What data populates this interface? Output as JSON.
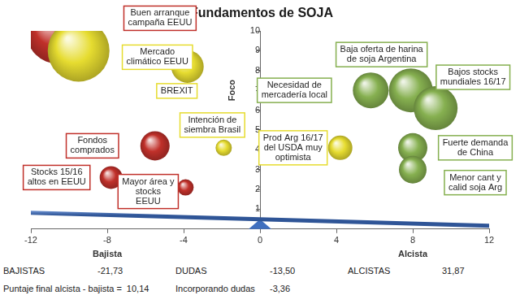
{
  "chart_data": {
    "type": "bubble",
    "title": "Fundamentos de SOJA",
    "xlabel": [
      "Bajista",
      "Alcista"
    ],
    "ylabel": "Foco",
    "xlim": [
      -12,
      12
    ],
    "xticks": [
      -12,
      -8,
      -4,
      0,
      4,
      8,
      12
    ],
    "ylim": [
      0,
      10
    ],
    "yticks": [
      1,
      2,
      3,
      4,
      5,
      6,
      7,
      8,
      9,
      10
    ],
    "grid": false,
    "series": [
      {
        "name": "BAJISTAS",
        "color": "#c0302a",
        "total": -21.73,
        "total_label": "-21,73",
        "values": [
          {
            "x": -10.6,
            "y": 9.9,
            "size": 38,
            "label": "Buen arranque\ncampaña EEUU"
          },
          {
            "x": -5.5,
            "y": 4.2,
            "size": 18,
            "label": "Fondos\ncomprados"
          },
          {
            "x": -7.8,
            "y": 2.6,
            "size": 14,
            "label": "Stocks 15/16\naltos en EEUU"
          },
          {
            "x": -3.9,
            "y": 2.1,
            "size": 10,
            "label": "Mayor área y\nstocks\nEEUU"
          }
        ]
      },
      {
        "name": "DUDAS",
        "color": "#e6dc30",
        "total": -13.5,
        "total_label": "-13,50",
        "values": [
          {
            "x": -9.5,
            "y": 9.0,
            "size": 38,
            "label": "Mercado\nclimático EEUU"
          },
          {
            "x": -3.8,
            "y": 8.2,
            "size": 20,
            "label": "BREXIT"
          },
          {
            "x": -1.9,
            "y": 4.1,
            "size": 10,
            "label": "Intención de\nsiembra Brasil"
          },
          {
            "x": 4.2,
            "y": 4.1,
            "size": 15,
            "label": "Prod Arg 16/17\ndel USDA muy\noptimista"
          }
        ]
      },
      {
        "name": "ALCISTAS",
        "color": "#86b050",
        "total": 31.87,
        "total_label": "31,87",
        "values": [
          {
            "x": 5.8,
            "y": 7.0,
            "size": 22,
            "label": "Necesidad de\nmercadería local"
          },
          {
            "x": 7.9,
            "y": 7.0,
            "size": 27,
            "label": "Baja oferta de harina\nde soja Argentina"
          },
          {
            "x": 9.2,
            "y": 6.1,
            "size": 27,
            "label": "Bajos stocks\nmundiales 16/17"
          },
          {
            "x": 8.0,
            "y": 4.1,
            "size": 18,
            "label": "Fuerte demanda\nde China"
          },
          {
            "x": 8.0,
            "y": 3.0,
            "size": 17,
            "label": "Menor cant y\ncalid soja Arg"
          }
        ]
      }
    ],
    "summary": [
      {
        "label": "Puntaje final alcista - bajista =",
        "value": 10.14,
        "value_label": "10,14"
      },
      {
        "label": "Incorporando dudas",
        "value": -3.36,
        "value_label": "-3,36"
      }
    ]
  }
}
